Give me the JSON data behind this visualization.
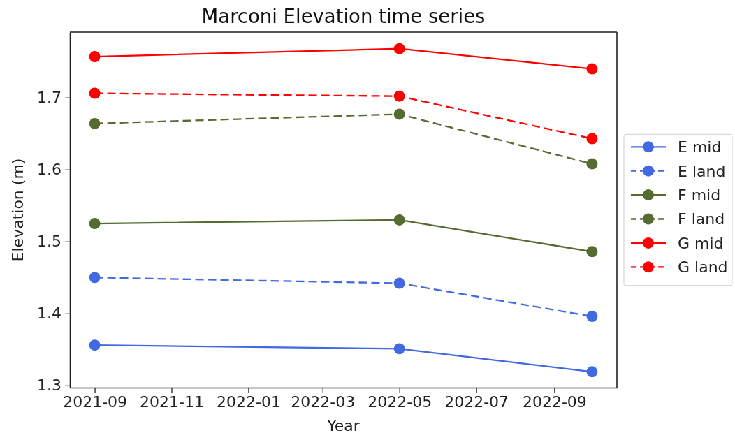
{
  "chart_data": {
    "type": "line",
    "title": "Marconi Elevation time series",
    "xlabel": "Year",
    "ylabel": "Elevation (m)",
    "x": [
      "2021-09-01",
      "2022-05-01",
      "2022-10-01"
    ],
    "series": [
      {
        "name": "E mid",
        "color": "#4169e1",
        "line_style": "solid",
        "values": [
          1.356,
          1.351,
          1.319
        ]
      },
      {
        "name": "E land",
        "color": "#4169e1",
        "line_style": "dashed",
        "values": [
          1.45,
          1.442,
          1.396
        ]
      },
      {
        "name": "F mid",
        "color": "#556b2f",
        "line_style": "solid",
        "values": [
          1.525,
          1.53,
          1.486
        ]
      },
      {
        "name": "F land",
        "color": "#556b2f",
        "line_style": "dashed",
        "values": [
          1.664,
          1.677,
          1.608
        ]
      },
      {
        "name": "G mid",
        "color": "#ff0000",
        "line_style": "solid",
        "values": [
          1.757,
          1.768,
          1.74
        ]
      },
      {
        "name": "G land",
        "color": "#ff0000",
        "line_style": "dashed",
        "values": [
          1.706,
          1.702,
          1.643
        ]
      }
    ],
    "xlim": [
      "2021-08-12T06:00",
      "2022-10-20T18:00"
    ],
    "xticks": [
      "2021-09",
      "2021-11",
      "2022-01",
      "2022-03",
      "2022-05",
      "2022-07",
      "2022-09"
    ],
    "ylim": [
      1.297,
      1.791
    ],
    "yticks": [
      1.3,
      1.4,
      1.5,
      1.6,
      1.7
    ],
    "marker": "circle",
    "legend": "right"
  }
}
